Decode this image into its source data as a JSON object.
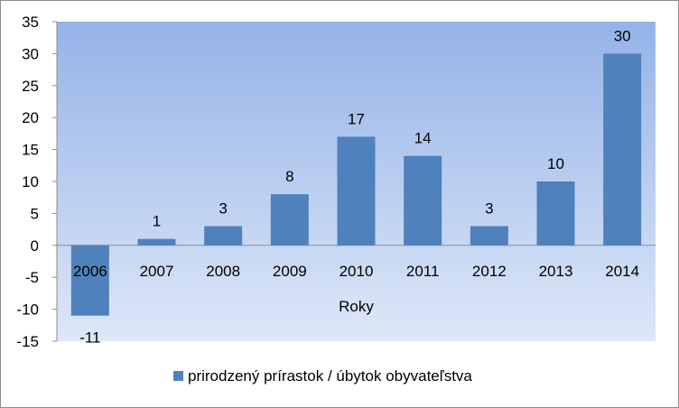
{
  "chart_data": {
    "type": "bar",
    "categories": [
      "2006",
      "2007",
      "2008",
      "2009",
      "2010",
      "2011",
      "2012",
      "2013",
      "2014"
    ],
    "series": [
      {
        "name": "prirodzený prírastok / úbytok obyvateľstva",
        "values": [
          -11,
          1,
          3,
          8,
          17,
          14,
          3,
          10,
          30
        ],
        "color": "#4f81bd"
      }
    ],
    "xlabel": "Roky",
    "ylabel": "",
    "ylim": [
      -15,
      35
    ],
    "yticks": [
      -15,
      -10,
      -5,
      0,
      5,
      10,
      15,
      20,
      25,
      30,
      35
    ],
    "data_labels": true,
    "grid": false,
    "legend_position": "bottom",
    "plot_background": {
      "top": "#95b3e7",
      "bottom": "#dde7f8"
    }
  }
}
